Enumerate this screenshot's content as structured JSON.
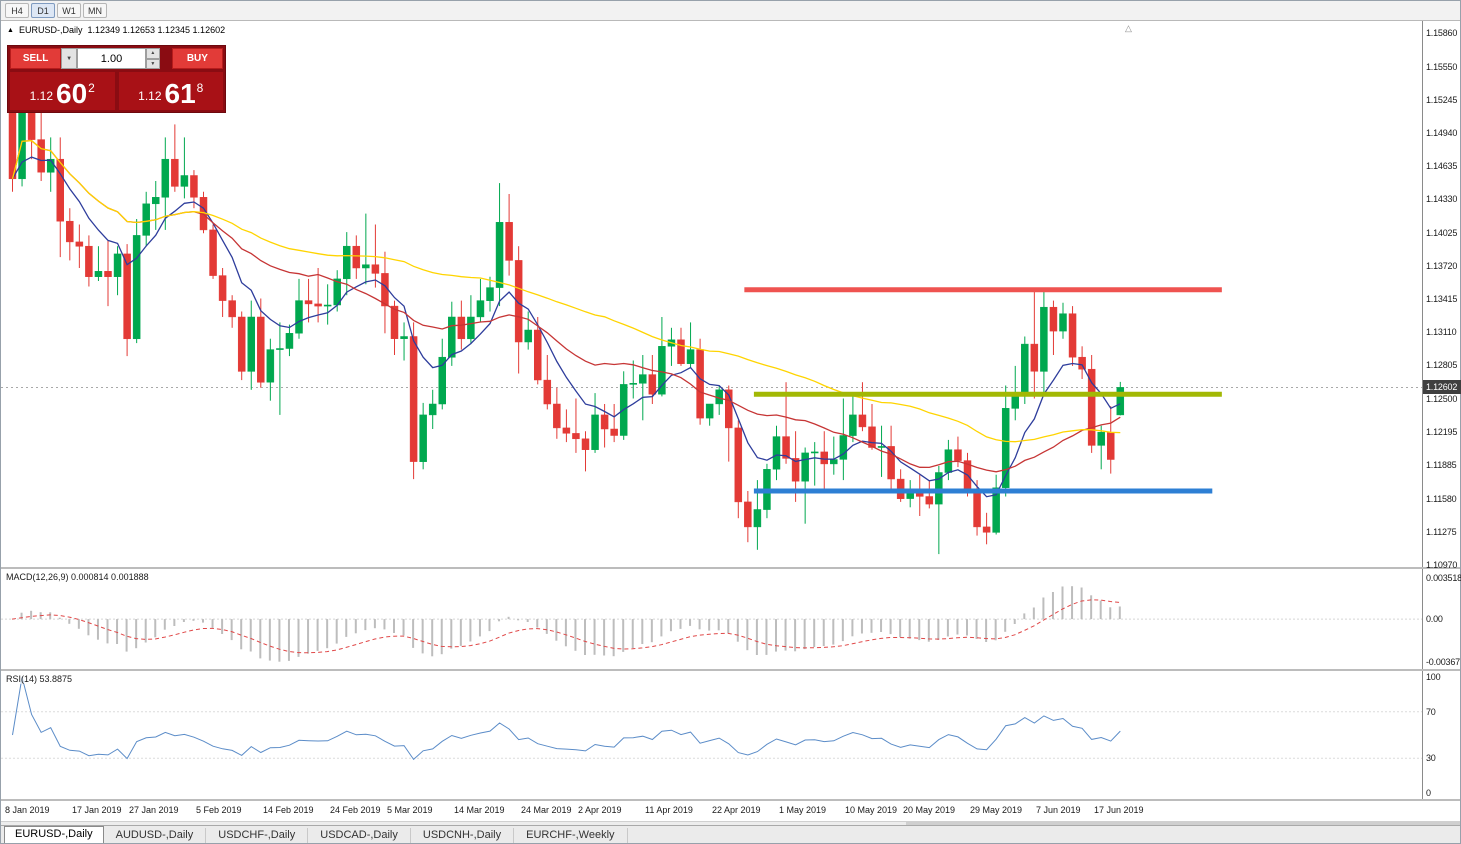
{
  "window": {
    "timeframes": [
      "H4",
      "D1",
      "W1",
      "MN"
    ],
    "active_timeframe": "D1"
  },
  "icons": {
    "symbol_marker": "▲",
    "chevron_down": "▼",
    "spin_up": "▲",
    "spin_down": "▼",
    "shift_marker": "△"
  },
  "chart": {
    "symbol_label": "EURUSD-,Daily",
    "ohlc_text": "1.12349 1.12653 1.12345 1.12602"
  },
  "trade_panel": {
    "sell_label": "SELL",
    "buy_label": "BUY",
    "volume": "1.00",
    "sell_price": {
      "prefix": "1.12",
      "big": "60",
      "sup": "2"
    },
    "buy_price": {
      "prefix": "1.12",
      "big": "61",
      "sup": "8"
    }
  },
  "chart_data": {
    "type": "candlestick",
    "symbol": "EURUSD-",
    "timeframe": "Daily",
    "ohlc_current": {
      "open": 1.12349,
      "high": 1.12653,
      "low": 1.12345,
      "close": 1.12602
    },
    "current_price": {
      "value": 1.12602,
      "label": "1.12602"
    },
    "ylim": [
      1.1097,
      1.1586
    ],
    "colors": {
      "up": "#00a84f",
      "down": "#e33a36"
    },
    "moving_averages": [
      {
        "kind": "ema",
        "period": 8,
        "color": "#2e3d9c"
      },
      {
        "kind": "sma",
        "period": 20,
        "color": "#c63535"
      },
      {
        "kind": "sma",
        "period": 50,
        "color": "#ffd400"
      }
    ],
    "hlines": [
      {
        "price": 1.135,
        "color": "#ef5350",
        "start_index": 77,
        "end_index": 127,
        "thickness": 5
      },
      {
        "price": 1.1254,
        "color": "#a2b804",
        "start_index": 78,
        "end_index": 127,
        "thickness": 5
      },
      {
        "price": 1.1165,
        "color": "#2d7fd4",
        "start_index": 78,
        "end_index": 126,
        "thickness": 5
      }
    ],
    "candles": [
      [
        1.1518,
        1.1528,
        1.144,
        1.1452
      ],
      [
        1.1452,
        1.1535,
        1.1445,
        1.1521
      ],
      [
        1.1521,
        1.1537,
        1.147,
        1.1488
      ],
      [
        1.1488,
        1.152,
        1.145,
        1.1458
      ],
      [
        1.1458,
        1.149,
        1.144,
        1.147
      ],
      [
        1.147,
        1.149,
        1.138,
        1.1413
      ],
      [
        1.1413,
        1.1425,
        1.1377,
        1.1394
      ],
      [
        1.1394,
        1.141,
        1.137,
        1.139
      ],
      [
        1.139,
        1.14,
        1.1353,
        1.1362
      ],
      [
        1.1362,
        1.139,
        1.1358,
        1.1367
      ],
      [
        1.1367,
        1.1395,
        1.1335,
        1.1362
      ],
      [
        1.1362,
        1.139,
        1.1345,
        1.1383
      ],
      [
        1.1383,
        1.1392,
        1.1289,
        1.1305
      ],
      [
        1.1305,
        1.1415,
        1.1301,
        1.14
      ],
      [
        1.14,
        1.144,
        1.139,
        1.1429
      ],
      [
        1.1429,
        1.145,
        1.1405,
        1.1435
      ],
      [
        1.1435,
        1.149,
        1.1405,
        1.147
      ],
      [
        1.147,
        1.1502,
        1.144,
        1.1445
      ],
      [
        1.1445,
        1.149,
        1.1434,
        1.1455
      ],
      [
        1.1455,
        1.146,
        1.1425,
        1.1435
      ],
      [
        1.1435,
        1.144,
        1.1402,
        1.1405
      ],
      [
        1.1405,
        1.141,
        1.136,
        1.1363
      ],
      [
        1.1363,
        1.137,
        1.1325,
        1.134
      ],
      [
        1.134,
        1.1345,
        1.1315,
        1.1325
      ],
      [
        1.1325,
        1.133,
        1.1267,
        1.1275
      ],
      [
        1.1275,
        1.134,
        1.1258,
        1.1325
      ],
      [
        1.1325,
        1.1342,
        1.126,
        1.1265
      ],
      [
        1.1265,
        1.1305,
        1.1248,
        1.1295
      ],
      [
        1.1295,
        1.132,
        1.1235,
        1.1296
      ],
      [
        1.1296,
        1.1318,
        1.1289,
        1.131
      ],
      [
        1.131,
        1.136,
        1.1305,
        1.134
      ],
      [
        1.134,
        1.136,
        1.132,
        1.1337
      ],
      [
        1.1337,
        1.137,
        1.132,
        1.1335
      ],
      [
        1.1335,
        1.1355,
        1.1318,
        1.1336
      ],
      [
        1.1336,
        1.1368,
        1.133,
        1.136
      ],
      [
        1.136,
        1.1403,
        1.1345,
        1.139
      ],
      [
        1.139,
        1.14,
        1.136,
        1.137
      ],
      [
        1.137,
        1.142,
        1.1355,
        1.1373
      ],
      [
        1.1373,
        1.141,
        1.1352,
        1.1365
      ],
      [
        1.1365,
        1.1385,
        1.131,
        1.1335
      ],
      [
        1.1335,
        1.134,
        1.129,
        1.1305
      ],
      [
        1.1305,
        1.132,
        1.1285,
        1.1307
      ],
      [
        1.1307,
        1.132,
        1.1176,
        1.1192
      ],
      [
        1.1192,
        1.1246,
        1.1185,
        1.1235
      ],
      [
        1.1235,
        1.1258,
        1.1222,
        1.1245
      ],
      [
        1.1245,
        1.1305,
        1.124,
        1.1288
      ],
      [
        1.1288,
        1.1339,
        1.128,
        1.1325
      ],
      [
        1.1325,
        1.134,
        1.1295,
        1.1305
      ],
      [
        1.1305,
        1.1345,
        1.13,
        1.1325
      ],
      [
        1.1325,
        1.136,
        1.132,
        1.134
      ],
      [
        1.134,
        1.1362,
        1.133,
        1.1352
      ],
      [
        1.1352,
        1.1448,
        1.1335,
        1.1412
      ],
      [
        1.1412,
        1.1438,
        1.1363,
        1.1377
      ],
      [
        1.1377,
        1.139,
        1.1273,
        1.1302
      ],
      [
        1.1302,
        1.133,
        1.1295,
        1.1313
      ],
      [
        1.1313,
        1.1325,
        1.1263,
        1.1267
      ],
      [
        1.1267,
        1.129,
        1.124,
        1.1245
      ],
      [
        1.1245,
        1.126,
        1.1213,
        1.1223
      ],
      [
        1.1223,
        1.124,
        1.121,
        1.1218
      ],
      [
        1.1218,
        1.125,
        1.12,
        1.1213
      ],
      [
        1.1213,
        1.122,
        1.1183,
        1.1203
      ],
      [
        1.1203,
        1.1255,
        1.12,
        1.1235
      ],
      [
        1.1235,
        1.1245,
        1.1205,
        1.1222
      ],
      [
        1.1222,
        1.1245,
        1.121,
        1.1216
      ],
      [
        1.1216,
        1.1275,
        1.1212,
        1.1263
      ],
      [
        1.1263,
        1.1285,
        1.125,
        1.1264
      ],
      [
        1.1264,
        1.129,
        1.123,
        1.1272
      ],
      [
        1.1272,
        1.129,
        1.1245,
        1.1254
      ],
      [
        1.1254,
        1.1325,
        1.1252,
        1.1298
      ],
      [
        1.1298,
        1.1315,
        1.128,
        1.1304
      ],
      [
        1.1304,
        1.1315,
        1.128,
        1.1282
      ],
      [
        1.1282,
        1.132,
        1.1278,
        1.1295
      ],
      [
        1.1295,
        1.1305,
        1.1226,
        1.1232
      ],
      [
        1.1232,
        1.1245,
        1.1225,
        1.1245
      ],
      [
        1.1245,
        1.1262,
        1.1235,
        1.1258
      ],
      [
        1.1258,
        1.1262,
        1.1192,
        1.1223
      ],
      [
        1.1223,
        1.123,
        1.114,
        1.1155
      ],
      [
        1.1155,
        1.1165,
        1.1118,
        1.1132
      ],
      [
        1.1132,
        1.1175,
        1.1111,
        1.1148
      ],
      [
        1.1148,
        1.119,
        1.114,
        1.1185
      ],
      [
        1.1185,
        1.1225,
        1.1175,
        1.1215
      ],
      [
        1.1215,
        1.1265,
        1.119,
        1.1195
      ],
      [
        1.1195,
        1.122,
        1.1155,
        1.1174
      ],
      [
        1.1174,
        1.1205,
        1.1135,
        1.12
      ],
      [
        1.12,
        1.121,
        1.117,
        1.1201
      ],
      [
        1.1201,
        1.122,
        1.1167,
        1.119
      ],
      [
        1.119,
        1.1215,
        1.118,
        1.1194
      ],
      [
        1.1194,
        1.125,
        1.1175,
        1.1216
      ],
      [
        1.1216,
        1.1255,
        1.121,
        1.1235
      ],
      [
        1.1235,
        1.1265,
        1.122,
        1.1224
      ],
      [
        1.1224,
        1.1245,
        1.1203,
        1.1205
      ],
      [
        1.1205,
        1.1225,
        1.1178,
        1.1206
      ],
      [
        1.1206,
        1.1225,
        1.1165,
        1.1176
      ],
      [
        1.1176,
        1.1185,
        1.1155,
        1.1158
      ],
      [
        1.1158,
        1.1175,
        1.115,
        1.1167
      ],
      [
        1.1167,
        1.118,
        1.1142,
        1.116
      ],
      [
        1.116,
        1.1175,
        1.1149,
        1.1153
      ],
      [
        1.1153,
        1.1188,
        1.1107,
        1.1182
      ],
      [
        1.1182,
        1.1212,
        1.1175,
        1.1203
      ],
      [
        1.1203,
        1.1215,
        1.1187,
        1.1193
      ],
      [
        1.1193,
        1.12,
        1.116,
        1.1163
      ],
      [
        1.1163,
        1.1175,
        1.1124,
        1.1132
      ],
      [
        1.1132,
        1.1145,
        1.1116,
        1.1127
      ],
      [
        1.1127,
        1.118,
        1.1125,
        1.1168
      ],
      [
        1.1168,
        1.1262,
        1.116,
        1.1241
      ],
      [
        1.1241,
        1.128,
        1.123,
        1.1253
      ],
      [
        1.1253,
        1.1307,
        1.1245,
        1.13
      ],
      [
        1.13,
        1.1348,
        1.125,
        1.1275
      ],
      [
        1.1275,
        1.1348,
        1.1255,
        1.1334
      ],
      [
        1.1334,
        1.134,
        1.129,
        1.1312
      ],
      [
        1.1312,
        1.1338,
        1.1305,
        1.1328
      ],
      [
        1.1328,
        1.1335,
        1.128,
        1.1288
      ],
      [
        1.1288,
        1.1298,
        1.1268,
        1.1277
      ],
      [
        1.1277,
        1.129,
        1.12,
        1.1207
      ],
      [
        1.1207,
        1.1225,
        1.1185,
        1.1219
      ],
      [
        1.1219,
        1.1243,
        1.1181,
        1.1194
      ],
      [
        1.12349,
        1.12653,
        1.12345,
        1.12602
      ]
    ]
  },
  "price_axis": [
    "1.15860",
    "1.15550",
    "1.15245",
    "1.14940",
    "1.14635",
    "1.14330",
    "1.14025",
    "1.13720",
    "1.13415",
    "1.13110",
    "1.12805",
    "1.12500",
    "1.12195",
    "1.11885",
    "1.11580",
    "1.11275",
    "1.10970"
  ],
  "macd_panel": {
    "label": "MACD(12,26,9) 0.000814 0.001888",
    "axis_labels": [
      "0.003518",
      "0.00",
      "-0.00367"
    ],
    "scale_max": 0.003518,
    "scale_min": -0.00367,
    "params": {
      "fast": 12,
      "slow": 26,
      "signal": 9
    },
    "values_current": {
      "macd": 0.000814,
      "signal": 0.001888
    }
  },
  "rsi_panel": {
    "label": "RSI(14) 53.8875",
    "period": 14,
    "current": 53.8875,
    "axis_labels": [
      "100",
      "70",
      "30",
      "0"
    ],
    "levels": [
      70,
      30
    ]
  },
  "time_axis": {
    "labels": [
      {
        "text": "8 Jan 2019",
        "i": 0
      },
      {
        "text": "17 Jan 2019",
        "i": 7
      },
      {
        "text": "27 Jan 2019",
        "i": 13
      },
      {
        "text": "5 Feb 2019",
        "i": 20
      },
      {
        "text": "14 Feb 2019",
        "i": 27
      },
      {
        "text": "24 Feb 2019",
        "i": 34
      },
      {
        "text": "5 Mar 2019",
        "i": 40
      },
      {
        "text": "14 Mar 2019",
        "i": 47
      },
      {
        "text": "24 Mar 2019",
        "i": 54
      },
      {
        "text": "2 Apr 2019",
        "i": 60
      },
      {
        "text": "11 Apr 2019",
        "i": 67
      },
      {
        "text": "22 Apr 2019",
        "i": 74
      },
      {
        "text": "1 May 2019",
        "i": 81
      },
      {
        "text": "10 May 2019",
        "i": 88
      },
      {
        "text": "20 May 2019",
        "i": 94
      },
      {
        "text": "29 May 2019",
        "i": 101
      },
      {
        "text": "7 Jun 2019",
        "i": 108
      },
      {
        "text": "17 Jun 2019",
        "i": 114
      }
    ]
  },
  "tabs": [
    {
      "label": "EURUSD-,Daily",
      "active": true
    },
    {
      "label": "AUDUSD-,Daily",
      "active": false
    },
    {
      "label": "USDCHF-,Daily",
      "active": false
    },
    {
      "label": "USDCAD-,Daily",
      "active": false
    },
    {
      "label": "USDCNH-,Daily",
      "active": false
    },
    {
      "label": "EURCHF-,Weekly",
      "active": false
    }
  ]
}
